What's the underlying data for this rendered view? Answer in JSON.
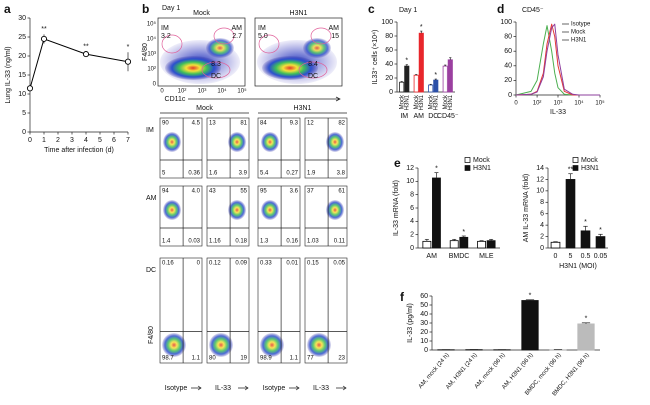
{
  "chart_data": [
    {
      "panel": "a",
      "type": "line",
      "xlabel": "Time after infection (d)",
      "ylabel": "Lung IL-33 (ng/ml)",
      "x": [
        0,
        1,
        4,
        7
      ],
      "series": [
        {
          "color": "#000000",
          "values": [
            11.5,
            24.5,
            20.5,
            18.5
          ],
          "errors": [
            0.8,
            1.2,
            0.6,
            2.5
          ],
          "significance": [
            null,
            "**",
            "**",
            "*"
          ]
        }
      ],
      "xlim": [
        0,
        7
      ],
      "xticks": [
        0,
        1,
        2,
        3,
        4,
        5,
        6,
        7
      ],
      "ylim": [
        0,
        30
      ],
      "yticks": [
        0,
        5,
        10,
        15,
        20,
        25,
        30
      ]
    },
    {
      "panel": "b",
      "type": "flow",
      "day": "Day 1",
      "groups": [
        "Mock",
        "H3N1"
      ],
      "ylabel": "F4/80",
      "xlabel": "CD11c",
      "axis_ticks": [
        "0",
        "10²",
        "10³",
        "10⁴",
        "10⁵"
      ],
      "gates": [
        [
          {
            "name": "IM",
            "value": "3.2"
          },
          {
            "name": "AM",
            "value": "2.7"
          },
          {
            "name": "DC",
            "value": "8.3"
          }
        ],
        [
          {
            "name": "IM",
            "value": "5.0"
          },
          {
            "name": "AM",
            "value": "15"
          },
          {
            "name": "DC",
            "value": "8.4"
          }
        ]
      ],
      "rows": [
        "IM",
        "AM",
        "DC"
      ],
      "stains": [
        "Isotype",
        "IL-33"
      ],
      "quadrants": [
        [
          [
            "90",
            "4.5",
            "5",
            "0.36"
          ],
          [
            "13",
            "81",
            "1.6",
            "3.9"
          ],
          [
            "84",
            "9.3",
            "5.4",
            "0.27"
          ],
          [
            "12",
            "82",
            "1.9",
            "3.8"
          ]
        ],
        [
          [
            "94",
            "4.0",
            "1.4",
            "0.03"
          ],
          [
            "43",
            "55",
            "1.16",
            "0.18"
          ],
          [
            "95",
            "3.6",
            "1.3",
            "0.16"
          ],
          [
            "37",
            "61",
            "1.03",
            "0.11"
          ]
        ],
        [
          [
            "0.16",
            "0",
            "98.7",
            "1.1"
          ],
          [
            "0.12",
            "0.09",
            "80",
            "19"
          ],
          [
            "0.33",
            "0.01",
            "98.9",
            "1.1"
          ],
          [
            "0.15",
            "0.05",
            "77",
            "23"
          ]
        ]
      ]
    },
    {
      "panel": "c",
      "type": "bar",
      "title": "Day 1",
      "ylabel": "IL33⁺ cells (×10⁴)",
      "legend": "under-bars",
      "categories": [
        "IM",
        "AM",
        "DC",
        "CD45⁻"
      ],
      "series": [
        {
          "name": "Mock",
          "filled": false,
          "colors": [
            "#222222",
            "#e8262b",
            "#2b4fa8",
            "#9b3fa0"
          ],
          "values": [
            14,
            24,
            10,
            37
          ],
          "errors": [
            1,
            1,
            1,
            1.5
          ],
          "significance": [
            null,
            null,
            null,
            null
          ]
        },
        {
          "name": "H3N1",
          "filled": true,
          "colors": [
            "#222222",
            "#e8262b",
            "#2b4fa8",
            "#9b3fa0"
          ],
          "values": [
            37,
            84,
            17,
            46
          ],
          "errors": [
            2,
            3,
            1.5,
            3
          ],
          "significance": [
            "*",
            "*",
            "*",
            null
          ]
        }
      ],
      "ylim": [
        0,
        100
      ],
      "yticks": [
        0,
        20,
        40,
        60,
        80,
        100
      ]
    },
    {
      "panel": "d",
      "type": "density",
      "title": "CD45⁻",
      "xlabel": "IL-33",
      "legend": "top-right",
      "xscale": "biexponential",
      "x": [
        0,
        50,
        100,
        200,
        300,
        500,
        700,
        1000,
        2000,
        5000,
        10000,
        100000
      ],
      "series": [
        {
          "name": "Isotype",
          "color": "#4caf50",
          "values": [
            0,
            5,
            20,
            70,
            95,
            60,
            30,
            10,
            1,
            0,
            0,
            0
          ]
        },
        {
          "name": "Mock",
          "color": "#e53935",
          "values": [
            0,
            1,
            5,
            30,
            70,
            97,
            80,
            40,
            5,
            0,
            0,
            0
          ]
        },
        {
          "name": "H3N1",
          "color": "#8e3f9e",
          "values": [
            0,
            1,
            4,
            25,
            60,
            92,
            97,
            55,
            8,
            1,
            0,
            0
          ]
        }
      ],
      "xlim": [
        0,
        100000
      ],
      "xticks": [
        0,
        {
          "value": 100,
          "label": "10²"
        },
        {
          "value": 1000,
          "label": "10³"
        },
        {
          "value": 10000,
          "label": "10⁴"
        },
        {
          "value": 100000,
          "label": "10⁵"
        }
      ],
      "ylim": [
        0,
        100
      ],
      "yticks": [
        0,
        20,
        40,
        60,
        80,
        100
      ]
    },
    {
      "panel": "e",
      "type": "bar",
      "ylabel": "IL-33 mRNA (fold)",
      "legend": "top-right",
      "categories": [
        "AM",
        "BMDC",
        "MLE"
      ],
      "series": [
        {
          "name": "Mock",
          "filled": false,
          "color": "#000000",
          "values": [
            1,
            1.1,
            1.0
          ],
          "errors": [
            0.3,
            0.2,
            0.1
          ],
          "significance": [
            null,
            null,
            null
          ]
        },
        {
          "name": "H3N1",
          "filled": true,
          "color": "#111111",
          "values": [
            10.5,
            1.6,
            1.1
          ],
          "errors": [
            0.8,
            0.2,
            0.2
          ],
          "significance": [
            "*",
            "*",
            null
          ]
        }
      ],
      "ylim": [
        0,
        12
      ],
      "yticks": [
        0,
        2,
        4,
        6,
        8,
        10,
        12
      ]
    },
    {
      "type": "bar",
      "ylabel": "AM IL-33 mRNA (fold)",
      "xlabel": "H3N1 (MOI)",
      "legend": "top-right",
      "categories": [
        "0",
        "5",
        "0.5",
        "0.05"
      ],
      "series": [
        {
          "name": "Mock",
          "filled": false,
          "color": "#000000",
          "values": [
            1,
            null,
            null,
            null
          ],
          "errors": [
            0.1,
            null,
            null,
            null
          ],
          "significance": [
            null,
            null,
            null,
            null
          ]
        },
        {
          "name": "H3N1",
          "filled": true,
          "color": "#111111",
          "values": [
            null,
            12,
            3,
            2
          ],
          "errors": [
            null,
            1,
            0.8,
            0.4
          ],
          "significance": [
            null,
            "**",
            "*",
            "*"
          ]
        }
      ],
      "ylim": [
        0,
        14
      ],
      "yticks": [
        0,
        2,
        4,
        6,
        8,
        10,
        12,
        14
      ]
    },
    {
      "panel": "f",
      "type": "bar",
      "ylabel": "IL-33 (pg/ml)",
      "categories": [
        "AM, mock (24 h)",
        "AM, H3N1 (24 h)",
        "AM, mock (96 h)",
        "AM, H3N1 (96 h)",
        "BMDC, mock (96 h)",
        "BMDC, H3N1 (96 h)"
      ],
      "series": [
        {
          "filled": true,
          "colors": [
            "#111111",
            "#111111",
            "#111111",
            "#111111",
            "#bbbbbb",
            "#bbbbbb"
          ],
          "values": [
            0.3,
            0.4,
            0.3,
            55,
            0.3,
            29
          ],
          "errors": [
            0.1,
            0.1,
            0.1,
            0.8,
            0.1,
            1.2
          ],
          "significance": [
            null,
            null,
            null,
            "*",
            null,
            "*"
          ]
        }
      ],
      "ylim": [
        0,
        60
      ],
      "yticks": [
        0,
        10,
        20,
        30,
        40,
        50,
        60
      ]
    }
  ]
}
